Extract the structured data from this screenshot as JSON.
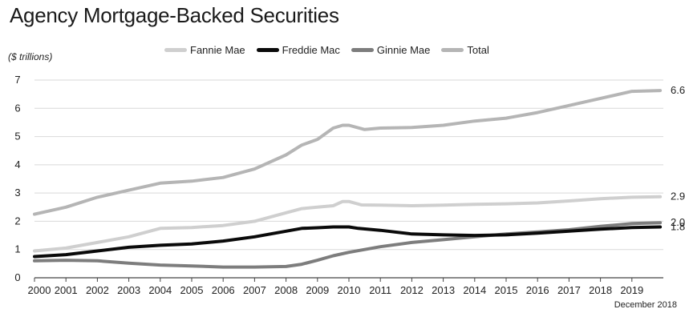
{
  "chart_data": {
    "type": "line",
    "title": "Agency Mortgage-Backed Securities",
    "ylabel": "($ trillions)",
    "xlabel": "",
    "note": "December 2018",
    "ylim": [
      0,
      7
    ],
    "xlim": [
      2000,
      2020
    ],
    "yticks": [
      "0",
      "1",
      "2",
      "3",
      "4",
      "5",
      "6",
      "7"
    ],
    "xticks": [
      "2000",
      "2001",
      "2002",
      "2003",
      "2004",
      "2005",
      "2006",
      "2007",
      "2008",
      "2009",
      "2010",
      "2011",
      "2012",
      "2013",
      "2014",
      "2015",
      "2016",
      "2017",
      "2018",
      "2019"
    ],
    "grid": "horizontal",
    "legend": "top",
    "series": [
      {
        "name": "Fannie Mae",
        "color": "#cfcfcf",
        "end_label": "2.9",
        "x": [
          2000,
          2001,
          2002,
          2003,
          2004,
          2005,
          2006,
          2007,
          2008,
          2008.5,
          2009,
          2009.5,
          2009.8,
          2010,
          2010.4,
          2011,
          2012,
          2013,
          2014,
          2015,
          2016,
          2017,
          2018,
          2019,
          2019.9
        ],
        "values": [
          0.95,
          1.05,
          1.25,
          1.45,
          1.75,
          1.78,
          1.85,
          2.0,
          2.3,
          2.45,
          2.5,
          2.55,
          2.7,
          2.7,
          2.58,
          2.57,
          2.55,
          2.57,
          2.6,
          2.62,
          2.65,
          2.72,
          2.8,
          2.85,
          2.87
        ]
      },
      {
        "name": "Freddie Mac",
        "color": "#0a0a0a",
        "end_label": "1.8",
        "x": [
          2000,
          2001,
          2002,
          2003,
          2004,
          2005,
          2006,
          2007,
          2008,
          2008.5,
          2009,
          2009.5,
          2010,
          2010.3,
          2011,
          2012,
          2013,
          2014,
          2015,
          2016,
          2017,
          2018,
          2019,
          2019.9
        ],
        "values": [
          0.75,
          0.82,
          0.95,
          1.08,
          1.15,
          1.2,
          1.3,
          1.45,
          1.65,
          1.75,
          1.77,
          1.8,
          1.8,
          1.75,
          1.68,
          1.55,
          1.52,
          1.5,
          1.52,
          1.58,
          1.65,
          1.72,
          1.78,
          1.8
        ]
      },
      {
        "name": "Ginnie Mae",
        "color": "#7d7d7d",
        "end_label": "2.0",
        "x": [
          2000,
          2001,
          2002,
          2003,
          2004,
          2005,
          2006,
          2007,
          2008,
          2008.5,
          2009,
          2009.5,
          2010,
          2011,
          2012,
          2013,
          2014,
          2015,
          2016,
          2017,
          2018,
          2019,
          2019.9
        ],
        "values": [
          0.6,
          0.62,
          0.6,
          0.52,
          0.45,
          0.42,
          0.38,
          0.38,
          0.4,
          0.48,
          0.62,
          0.78,
          0.9,
          1.1,
          1.25,
          1.35,
          1.45,
          1.55,
          1.62,
          1.7,
          1.82,
          1.92,
          1.95
        ]
      },
      {
        "name": "Total",
        "color": "#b5b5b5",
        "end_label": "6.6",
        "x": [
          2000,
          2001,
          2002,
          2003,
          2004,
          2005,
          2006,
          2007,
          2008,
          2008.5,
          2009,
          2009.5,
          2009.8,
          2010,
          2010.5,
          2011,
          2012,
          2013,
          2014,
          2015,
          2016,
          2017,
          2018,
          2019,
          2019.9
        ],
        "values": [
          2.25,
          2.5,
          2.85,
          3.1,
          3.35,
          3.42,
          3.55,
          3.85,
          4.35,
          4.7,
          4.9,
          5.3,
          5.4,
          5.4,
          5.25,
          5.3,
          5.32,
          5.4,
          5.55,
          5.65,
          5.85,
          6.1,
          6.35,
          6.6,
          6.63
        ]
      }
    ]
  }
}
